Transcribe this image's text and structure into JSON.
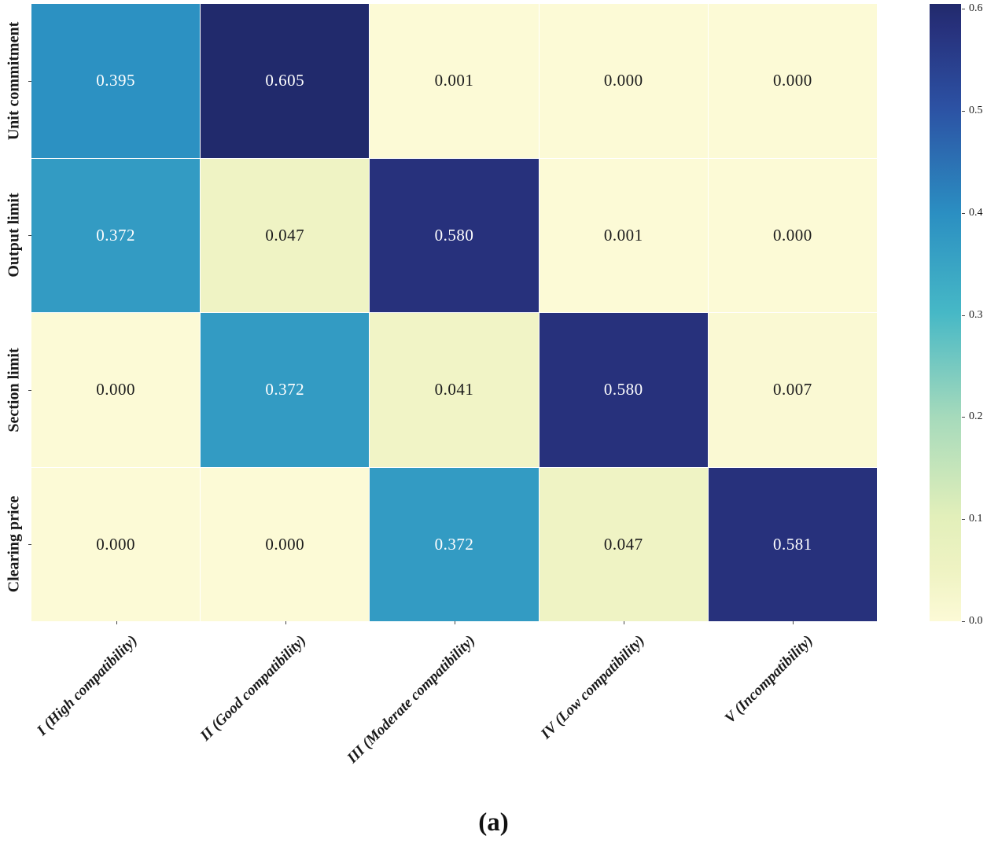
{
  "chart_data": {
    "type": "heatmap",
    "rows": [
      "Unit commitment",
      "Output limit",
      "Section limit",
      "Clearing price"
    ],
    "columns": [
      "I (High compatibility)",
      "II (Good compatibility)",
      "III (Moderate compatibility)",
      "IV (Low compatibility)",
      "V (Incompatibility)"
    ],
    "values": [
      [
        0.395,
        0.605,
        0.001,
        0.0,
        0.0
      ],
      [
        0.372,
        0.047,
        0.58,
        0.001,
        0.0
      ],
      [
        0.0,
        0.372,
        0.041,
        0.58,
        0.007
      ],
      [
        0.0,
        0.0,
        0.372,
        0.047,
        0.581
      ]
    ],
    "value_decimals": 3,
    "vmin": 0.0,
    "vmax": 0.605,
    "colormap_name": "YlGnBu",
    "colormap_stops": [
      {
        "t": 0.0,
        "hex": "#fcfad6"
      },
      {
        "t": 0.08,
        "hex": "#eff3c3"
      },
      {
        "t": 0.17,
        "hex": "#e2efba"
      },
      {
        "t": 0.33,
        "hex": "#a6dabb"
      },
      {
        "t": 0.5,
        "hex": "#46b8c6"
      },
      {
        "t": 0.66,
        "hex": "#2b8fc2"
      },
      {
        "t": 0.83,
        "hex": "#2c52a4"
      },
      {
        "t": 0.96,
        "hex": "#27317c"
      },
      {
        "t": 1.0,
        "hex": "#212a6c"
      }
    ],
    "cell_text_light": "#ffffff",
    "cell_text_dark": "#1b1b1b",
    "colorbar": {
      "ticks": [
        "0.6",
        "0.5",
        "0.4",
        "0.3",
        "0.2",
        "0.1",
        "0.0"
      ]
    },
    "legend_position": "right",
    "grid": false,
    "caption": "(a)"
  }
}
